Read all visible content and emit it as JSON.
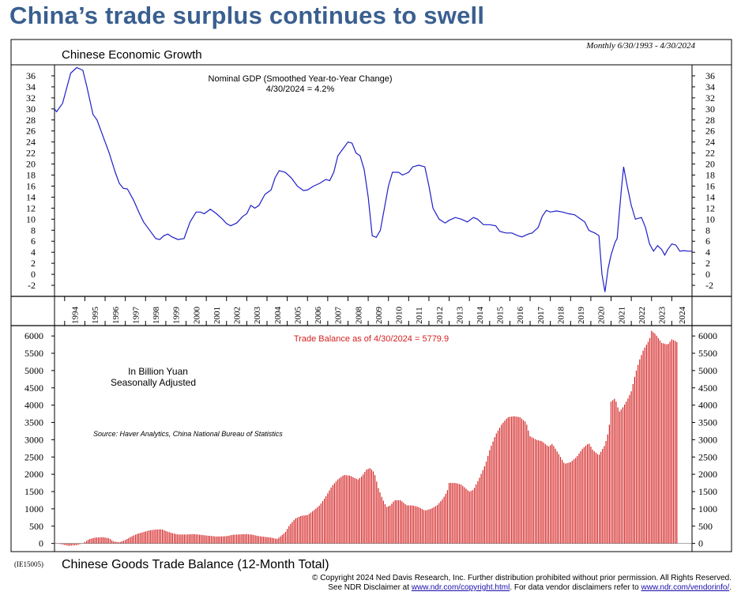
{
  "headline": "China’s trade surplus continues to swell",
  "date_range": "Monthly 6/30/1993 - 4/30/2024",
  "code": "(IE15005)",
  "footer": {
    "line1": "© Copyright 2024 Ned Davis Research, Inc.  Further distribution prohibited without prior permission.  All Rights Reserved.",
    "line2_pre": "See NDR Disclaimer at ",
    "line2_link1": "www.ndr.com/copyright.html",
    "line2_mid": ". For data vendor disclaimers refer to ",
    "line2_link2": "www.ndr.com/vendorinfo/",
    "line2_post": "."
  },
  "colors": {
    "gdp_line": "#1f1fc8",
    "trade_bars": "#d42020",
    "headline": "#3a5f8f"
  },
  "chart_data": [
    {
      "type": "line",
      "title": "Chinese Economic Growth",
      "series": [
        {
          "name": "Nominal GDP (Smoothed Year-to-Year Change)",
          "points": [
            [
              1993.5,
              30
            ],
            [
              1993.6,
              29.5
            ],
            [
              1993.9,
              31
            ],
            [
              1994.3,
              36.5
            ],
            [
              1994.6,
              37.5
            ],
            [
              1994.9,
              37
            ],
            [
              1995.1,
              34
            ],
            [
              1995.4,
              29
            ],
            [
              1995.6,
              28
            ],
            [
              1995.9,
              25
            ],
            [
              1996.2,
              22
            ],
            [
              1996.5,
              18.5
            ],
            [
              1996.7,
              16.5
            ],
            [
              1996.9,
              15.6
            ],
            [
              1997.1,
              15.5
            ],
            [
              1997.4,
              13.5
            ],
            [
              1997.7,
              11
            ],
            [
              1997.9,
              9.5
            ],
            [
              1998.2,
              8
            ],
            [
              1998.5,
              6.5
            ],
            [
              1998.7,
              6.3
            ],
            [
              1998.9,
              7
            ],
            [
              1999.1,
              7.3
            ],
            [
              1999.3,
              6.8
            ],
            [
              1999.6,
              6.3
            ],
            [
              1999.9,
              6.5
            ],
            [
              2000.2,
              9.5
            ],
            [
              2000.5,
              11.3
            ],
            [
              2000.7,
              11.3
            ],
            [
              2000.9,
              11
            ],
            [
              2001.2,
              11.8
            ],
            [
              2001.5,
              11
            ],
            [
              2001.8,
              10
            ],
            [
              2002.0,
              9.2
            ],
            [
              2002.2,
              8.8
            ],
            [
              2002.5,
              9.3
            ],
            [
              2002.8,
              10.5
            ],
            [
              2003.0,
              11
            ],
            [
              2003.2,
              12.5
            ],
            [
              2003.4,
              12
            ],
            [
              2003.6,
              12.5
            ],
            [
              2003.9,
              14.5
            ],
            [
              2004.2,
              15.3
            ],
            [
              2004.4,
              17.5
            ],
            [
              2004.6,
              18.8
            ],
            [
              2004.9,
              18.5
            ],
            [
              2005.2,
              17.5
            ],
            [
              2005.5,
              16
            ],
            [
              2005.8,
              15.2
            ],
            [
              2006.0,
              15.3
            ],
            [
              2006.3,
              16
            ],
            [
              2006.6,
              16.5
            ],
            [
              2006.9,
              17.2
            ],
            [
              2007.1,
              17
            ],
            [
              2007.3,
              18.5
            ],
            [
              2007.5,
              21.5
            ],
            [
              2007.8,
              23
            ],
            [
              2008.0,
              24
            ],
            [
              2008.2,
              23.8
            ],
            [
              2008.4,
              22
            ],
            [
              2008.6,
              21.5
            ],
            [
              2008.8,
              19
            ],
            [
              2009.0,
              14
            ],
            [
              2009.2,
              7
            ],
            [
              2009.4,
              6.7
            ],
            [
              2009.6,
              8
            ],
            [
              2009.8,
              12
            ],
            [
              2010.0,
              16
            ],
            [
              2010.2,
              18.5
            ],
            [
              2010.5,
              18.5
            ],
            [
              2010.7,
              18
            ],
            [
              2011.0,
              18.5
            ],
            [
              2011.2,
              19.5
            ],
            [
              2011.5,
              19.8
            ],
            [
              2011.8,
              19.5
            ],
            [
              2012.0,
              16
            ],
            [
              2012.2,
              12
            ],
            [
              2012.5,
              10
            ],
            [
              2012.8,
              9.3
            ],
            [
              2013.0,
              9.8
            ],
            [
              2013.3,
              10.3
            ],
            [
              2013.6,
              10
            ],
            [
              2013.9,
              9.5
            ],
            [
              2014.2,
              10.3
            ],
            [
              2014.4,
              10
            ],
            [
              2014.7,
              9
            ],
            [
              2015.0,
              9
            ],
            [
              2015.3,
              8.8
            ],
            [
              2015.5,
              7.8
            ],
            [
              2015.8,
              7.5
            ],
            [
              2016.1,
              7.5
            ],
            [
              2016.4,
              7
            ],
            [
              2016.6,
              6.8
            ],
            [
              2016.9,
              7.3
            ],
            [
              2017.1,
              7.5
            ],
            [
              2017.4,
              8.5
            ],
            [
              2017.6,
              10.5
            ],
            [
              2017.8,
              11.6
            ],
            [
              2018.0,
              11.3
            ],
            [
              2018.3,
              11.5
            ],
            [
              2018.6,
              11.3
            ],
            [
              2018.9,
              11
            ],
            [
              2019.2,
              10.8
            ],
            [
              2019.5,
              10
            ],
            [
              2019.7,
              9.5
            ],
            [
              2019.9,
              8
            ],
            [
              2020.0,
              7.8
            ],
            [
              2020.2,
              7.5
            ],
            [
              2020.4,
              7
            ],
            [
              2020.55,
              0
            ],
            [
              2020.7,
              -3.2
            ],
            [
              2020.85,
              1
            ],
            [
              2021.0,
              3.5
            ],
            [
              2021.2,
              5.8
            ],
            [
              2021.3,
              6.5
            ],
            [
              2021.5,
              15
            ],
            [
              2021.62,
              19.5
            ],
            [
              2021.8,
              16
            ],
            [
              2022.0,
              12.5
            ],
            [
              2022.2,
              10
            ],
            [
              2022.5,
              10.3
            ],
            [
              2022.7,
              8.5
            ],
            [
              2022.9,
              5.5
            ],
            [
              2023.1,
              4.2
            ],
            [
              2023.3,
              5.2
            ],
            [
              2023.5,
              4.5
            ],
            [
              2023.65,
              3.5
            ],
            [
              2023.8,
              4.5
            ],
            [
              2024.0,
              5.5
            ],
            [
              2024.2,
              5.3
            ],
            [
              2024.4,
              4.2
            ],
            [
              2024.6,
              4.3
            ],
            [
              2024.8,
              4.2
            ],
            [
              2025.0,
              4.2
            ]
          ]
        }
      ],
      "annotation": {
        "line1": "Nominal GDP (Smoothed Year-to-Year Change)",
        "line2": "4/30/2024 = 4.2%"
      },
      "yticks": [
        "36",
        "34",
        "32",
        "30",
        "28",
        "26",
        "24",
        "22",
        "20",
        "18",
        "16",
        "14",
        "12",
        "10",
        "8",
        "6",
        "4",
        "2",
        "0",
        "-2"
      ],
      "ylim": [
        -4,
        38
      ]
    },
    {
      "type": "bar",
      "title": "Chinese Goods Trade Balance (12-Month Total)",
      "notes": [
        "In Billion Yuan",
        "Seasonally Adjusted"
      ],
      "source": "Source: Haver Analytics, China National Bureau of Statistics",
      "annotation": "Trade Balance as of 4/30/2024 = 5779.9",
      "x_tick_labels": [
        "1994",
        "1995",
        "1996",
        "1997",
        "1998",
        "1999",
        "2000",
        "2001",
        "2002",
        "2003",
        "2004",
        "2005",
        "2006",
        "2007",
        "2008",
        "2009",
        "2010",
        "2011",
        "2012",
        "2013",
        "2014",
        "2015",
        "2016",
        "2017",
        "2018",
        "2019",
        "2020",
        "2021",
        "2022",
        "2023",
        "2024"
      ],
      "yticks": [
        "6000",
        "5500",
        "5000",
        "4500",
        "4000",
        "3500",
        "3000",
        "2500",
        "2000",
        "1500",
        "1000",
        "500",
        "0"
      ],
      "ylim": [
        -100,
        6300
      ],
      "series": [
        {
          "points": [
            [
              1993.5,
              20
            ],
            [
              1993.8,
              -20
            ],
            [
              1994.2,
              -70
            ],
            [
              1994.6,
              -50
            ],
            [
              1994.9,
              0
            ],
            [
              1995.2,
              120
            ],
            [
              1995.5,
              170
            ],
            [
              1995.9,
              180
            ],
            [
              1996.2,
              150
            ],
            [
              1996.4,
              60
            ],
            [
              1996.7,
              30
            ],
            [
              1997.0,
              100
            ],
            [
              1997.3,
              200
            ],
            [
              1997.6,
              280
            ],
            [
              1997.9,
              330
            ],
            [
              1998.2,
              380
            ],
            [
              1998.5,
              400
            ],
            [
              1998.8,
              410
            ],
            [
              1999.0,
              360
            ],
            [
              1999.3,
              300
            ],
            [
              1999.6,
              260
            ],
            [
              2000.0,
              260
            ],
            [
              2000.4,
              270
            ],
            [
              2000.7,
              250
            ],
            [
              2001.0,
              230
            ],
            [
              2001.5,
              200
            ],
            [
              2002.0,
              210
            ],
            [
              2002.3,
              250
            ],
            [
              2002.6,
              260
            ],
            [
              2003.0,
              270
            ],
            [
              2003.3,
              250
            ],
            [
              2003.6,
              210
            ],
            [
              2003.9,
              190
            ],
            [
              2004.2,
              170
            ],
            [
              2004.5,
              130
            ],
            [
              2004.7,
              220
            ],
            [
              2004.9,
              320
            ],
            [
              2005.1,
              520
            ],
            [
              2005.4,
              720
            ],
            [
              2005.7,
              800
            ],
            [
              2006.0,
              820
            ],
            [
              2006.3,
              950
            ],
            [
              2006.6,
              1100
            ],
            [
              2006.9,
              1350
            ],
            [
              2007.2,
              1650
            ],
            [
              2007.5,
              1850
            ],
            [
              2007.8,
              1980
            ],
            [
              2008.1,
              1960
            ],
            [
              2008.3,
              1900
            ],
            [
              2008.5,
              1850
            ],
            [
              2008.7,
              1950
            ],
            [
              2008.9,
              2130
            ],
            [
              2009.1,
              2180
            ],
            [
              2009.3,
              2050
            ],
            [
              2009.5,
              1600
            ],
            [
              2009.7,
              1300
            ],
            [
              2009.9,
              1050
            ],
            [
              2010.1,
              1100
            ],
            [
              2010.3,
              1250
            ],
            [
              2010.6,
              1250
            ],
            [
              2010.9,
              1100
            ],
            [
              2011.2,
              1100
            ],
            [
              2011.5,
              1050
            ],
            [
              2011.8,
              950
            ],
            [
              2012.1,
              1000
            ],
            [
              2012.4,
              1100
            ],
            [
              2012.7,
              1300
            ],
            [
              2012.9,
              1500
            ],
            [
              2013.0,
              1750
            ],
            [
              2013.3,
              1750
            ],
            [
              2013.6,
              1700
            ],
            [
              2013.8,
              1600
            ],
            [
              2014.0,
              1500
            ],
            [
              2014.2,
              1550
            ],
            [
              2014.5,
              1900
            ],
            [
              2014.8,
              2300
            ],
            [
              2015.0,
              2700
            ],
            [
              2015.3,
              3150
            ],
            [
              2015.6,
              3450
            ],
            [
              2015.9,
              3650
            ],
            [
              2016.2,
              3680
            ],
            [
              2016.5,
              3650
            ],
            [
              2016.8,
              3500
            ],
            [
              2017.0,
              3100
            ],
            [
              2017.3,
              3000
            ],
            [
              2017.6,
              2950
            ],
            [
              2017.9,
              2800
            ],
            [
              2018.1,
              2880
            ],
            [
              2018.4,
              2600
            ],
            [
              2018.7,
              2300
            ],
            [
              2019.0,
              2350
            ],
            [
              2019.3,
              2500
            ],
            [
              2019.6,
              2750
            ],
            [
              2019.9,
              2900
            ],
            [
              2020.1,
              2700
            ],
            [
              2020.4,
              2550
            ],
            [
              2020.7,
              2850
            ],
            [
              2020.9,
              3300
            ],
            [
              2021.0,
              4100
            ],
            [
              2021.2,
              4200
            ],
            [
              2021.4,
              3800
            ],
            [
              2021.6,
              3950
            ],
            [
              2021.8,
              4150
            ],
            [
              2022.0,
              4400
            ],
            [
              2022.2,
              4900
            ],
            [
              2022.4,
              5300
            ],
            [
              2022.6,
              5600
            ],
            [
              2022.9,
              5900
            ],
            [
              2023.0,
              6150
            ],
            [
              2023.2,
              6050
            ],
            [
              2023.5,
              5800
            ],
            [
              2023.8,
              5750
            ],
            [
              2024.0,
              5900
            ],
            [
              2024.2,
              5850
            ],
            [
              2024.33,
              5779.9
            ]
          ]
        }
      ]
    }
  ]
}
